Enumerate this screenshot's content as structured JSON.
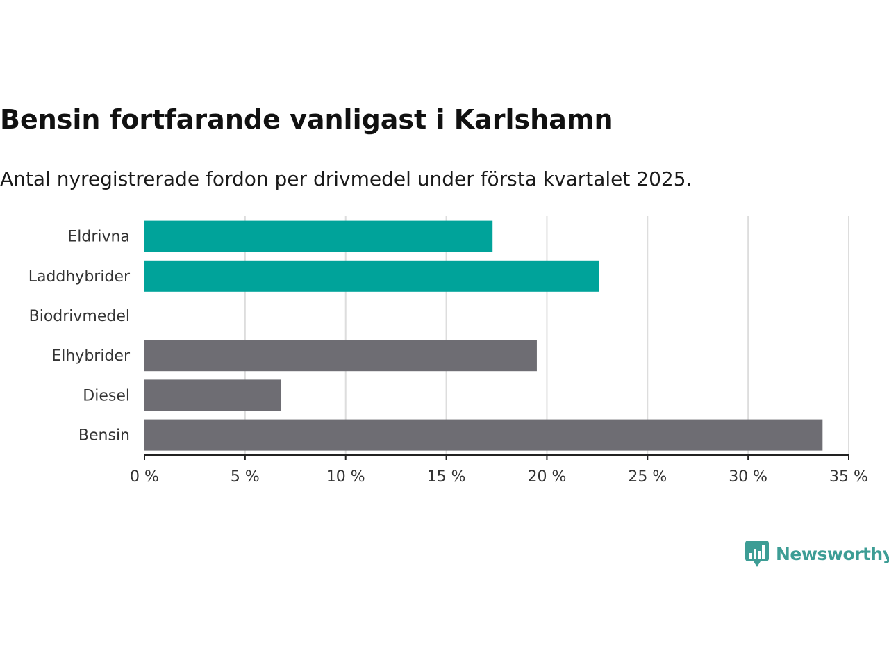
{
  "chart_data": {
    "type": "bar",
    "orientation": "horizontal",
    "title": "Bensin fortfarande vanligast i Karlshamn",
    "subtitle": "Antal nyregistrerade fordon per drivmedel under första kvartalet 2025.",
    "categories": [
      "Eldrivna",
      "Laddhybrider",
      "Biodrivmedel",
      "Elhybrider",
      "Diesel",
      "Bensin"
    ],
    "values": [
      17.3,
      22.6,
      0,
      19.5,
      6.8,
      33.7
    ],
    "bar_colors": [
      "#00a39a",
      "#00a39a",
      "#6e6d73",
      "#6e6d73",
      "#6e6d73",
      "#6e6d73"
    ],
    "xlim": [
      0,
      35
    ],
    "x_ticks": [
      0,
      5,
      10,
      15,
      20,
      25,
      30,
      35
    ],
    "x_tick_labels": [
      "0 %",
      "5 %",
      "10 %",
      "15 %",
      "20 %",
      "25 %",
      "30 %",
      "35 %"
    ],
    "grid": "vertical",
    "xlabel": "",
    "ylabel": ""
  },
  "branding": {
    "name": "Newsworthy",
    "color": "#3d9d95",
    "icon": "bar-chart-speech-bubble-icon"
  }
}
